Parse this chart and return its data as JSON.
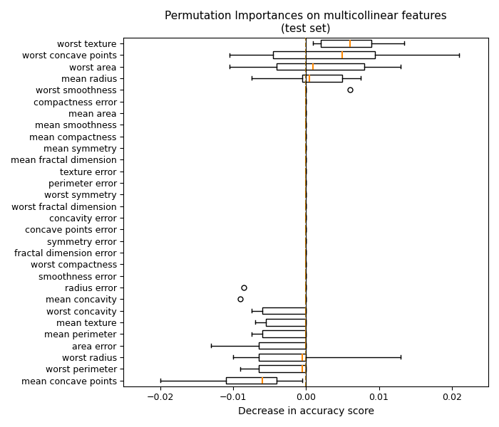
{
  "title": "Permutation Importances on multicollinear features\n(test set)",
  "xlabel": "Decrease in accuracy score",
  "feature_names": [
    "worst texture",
    "worst concave points",
    "worst area",
    "mean radius",
    "worst smoothness",
    "compactness error",
    "mean area",
    "mean smoothness",
    "mean compactness",
    "mean symmetry",
    "mean fractal dimension",
    "texture error",
    "perimeter error",
    "worst symmetry",
    "worst fractal dimension",
    "concavity error",
    "concave points error",
    "symmetry error",
    "fractal dimension error",
    "worst compactness",
    "smoothness error",
    "radius error",
    "mean concavity",
    "worst concavity",
    "mean texture",
    "mean perimeter",
    "area error",
    "worst radius",
    "worst perimeter",
    "mean concave points"
  ],
  "box_data": [
    {
      "q1": 0.002,
      "median": 0.006,
      "q3": 0.009,
      "whislo": 0.001,
      "whishi": 0.0135,
      "fliers": []
    },
    {
      "q1": -0.0045,
      "median": 0.005,
      "q3": 0.0095,
      "whislo": -0.0105,
      "whishi": 0.021,
      "fliers": []
    },
    {
      "q1": -0.004,
      "median": 0.001,
      "q3": 0.008,
      "whislo": -0.0105,
      "whishi": 0.013,
      "fliers": []
    },
    {
      "q1": -0.0005,
      "median": 0.0005,
      "q3": 0.005,
      "whislo": -0.0075,
      "whishi": 0.0075,
      "fliers": []
    },
    {
      "q1": 0.0,
      "median": 0.0,
      "q3": 0.0,
      "whislo": 0.0,
      "whishi": 0.0,
      "fliers": [
        0.006
      ]
    },
    {
      "q1": 0.0,
      "median": 0.0,
      "q3": 0.0,
      "whislo": 0.0,
      "whishi": 0.0,
      "fliers": []
    },
    {
      "q1": 0.0,
      "median": 0.0,
      "q3": 0.0,
      "whislo": 0.0,
      "whishi": 0.0,
      "fliers": []
    },
    {
      "q1": 0.0,
      "median": 0.0,
      "q3": 0.0,
      "whislo": 0.0,
      "whishi": 0.0,
      "fliers": []
    },
    {
      "q1": 0.0,
      "median": 0.0,
      "q3": 0.0,
      "whislo": 0.0,
      "whishi": 0.0,
      "fliers": []
    },
    {
      "q1": 0.0,
      "median": 0.0,
      "q3": 0.0,
      "whislo": 0.0,
      "whishi": 0.0,
      "fliers": []
    },
    {
      "q1": 0.0,
      "median": 0.0,
      "q3": 0.0,
      "whislo": 0.0,
      "whishi": 0.0,
      "fliers": []
    },
    {
      "q1": 0.0,
      "median": 0.0,
      "q3": 0.0,
      "whislo": 0.0,
      "whishi": 0.0,
      "fliers": []
    },
    {
      "q1": 0.0,
      "median": 0.0,
      "q3": 0.0,
      "whislo": 0.0,
      "whishi": 0.0,
      "fliers": []
    },
    {
      "q1": 0.0,
      "median": 0.0,
      "q3": 0.0,
      "whislo": 0.0,
      "whishi": 0.0,
      "fliers": []
    },
    {
      "q1": 0.0,
      "median": 0.0,
      "q3": 0.0,
      "whislo": 0.0,
      "whishi": 0.0,
      "fliers": []
    },
    {
      "q1": 0.0,
      "median": 0.0,
      "q3": 0.0,
      "whislo": 0.0,
      "whishi": 0.0,
      "fliers": []
    },
    {
      "q1": 0.0,
      "median": 0.0,
      "q3": 0.0,
      "whislo": 0.0,
      "whishi": 0.0,
      "fliers": []
    },
    {
      "q1": 0.0,
      "median": 0.0,
      "q3": 0.0,
      "whislo": 0.0,
      "whishi": 0.0,
      "fliers": []
    },
    {
      "q1": 0.0,
      "median": 0.0,
      "q3": 0.0,
      "whislo": 0.0,
      "whishi": 0.0,
      "fliers": []
    },
    {
      "q1": 0.0,
      "median": 0.0,
      "q3": 0.0,
      "whislo": 0.0,
      "whishi": 0.0,
      "fliers": []
    },
    {
      "q1": 0.0,
      "median": 0.0,
      "q3": 0.0,
      "whislo": 0.0,
      "whishi": 0.0,
      "fliers": []
    },
    {
      "q1": 0.0,
      "median": 0.0,
      "q3": 0.0,
      "whislo": 0.0,
      "whishi": 0.0,
      "fliers": [
        -0.0085
      ]
    },
    {
      "q1": 0.0,
      "median": 0.0,
      "q3": 0.0,
      "whislo": 0.0,
      "whishi": 0.0,
      "fliers": [
        -0.009
      ]
    },
    {
      "q1": -0.006,
      "median": 0.0,
      "q3": 0.0,
      "whislo": -0.0075,
      "whishi": 0.0,
      "fliers": []
    },
    {
      "q1": -0.0055,
      "median": 0.0,
      "q3": 0.0,
      "whislo": -0.007,
      "whishi": 0.0,
      "fliers": []
    },
    {
      "q1": -0.006,
      "median": 0.0,
      "q3": 0.0,
      "whislo": -0.0075,
      "whishi": 0.0,
      "fliers": []
    },
    {
      "q1": -0.0065,
      "median": 0.0,
      "q3": 0.0,
      "whislo": -0.013,
      "whishi": 0.0,
      "fliers": []
    },
    {
      "q1": -0.0065,
      "median": -0.0005,
      "q3": 0.0,
      "whislo": -0.01,
      "whishi": 0.013,
      "fliers": []
    },
    {
      "q1": -0.0065,
      "median": -0.0005,
      "q3": 0.0,
      "whislo": -0.009,
      "whishi": 0.0,
      "fliers": []
    },
    {
      "q1": -0.011,
      "median": -0.006,
      "q3": -0.004,
      "whislo": -0.02,
      "whishi": -0.0005,
      "fliers": []
    }
  ],
  "xlim": [
    -0.025,
    0.025
  ],
  "xticks": [
    -0.02,
    -0.01,
    0.0,
    0.01,
    0.02
  ],
  "dashed_line_color": "#cc8800",
  "box_facecolor": "white",
  "box_edgecolor": "black",
  "median_color": "#ff8800",
  "whisker_color": "black",
  "flier_color": "black",
  "title_fontsize": 11,
  "label_fontsize": 10,
  "tick_fontsize": 9
}
